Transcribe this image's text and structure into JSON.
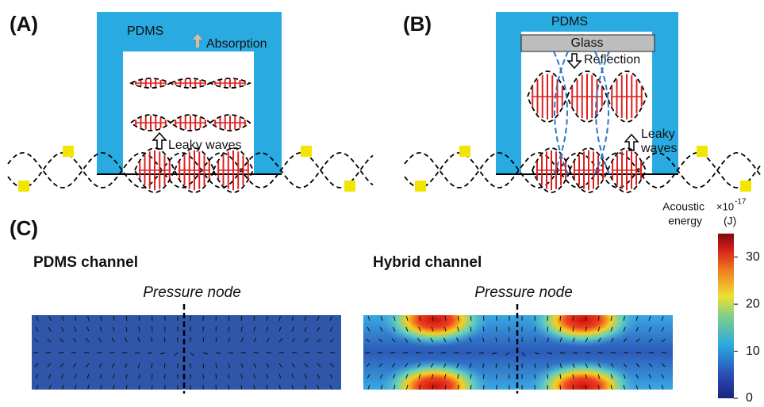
{
  "panels": {
    "a": {
      "label": "(A)",
      "material": "PDMS",
      "annotation": "Absorption",
      "waves": "Leaky waves"
    },
    "b": {
      "label": "(B)",
      "material": "PDMS",
      "glass": "Glass",
      "annotation": "Reflection",
      "waves_line1": "Leaky",
      "waves_line2": "waves"
    },
    "c": {
      "label": "(C)",
      "left_title": "PDMS channel",
      "right_title": "Hybrid channel",
      "left_node": "Pressure node",
      "right_node": "Pressure node"
    }
  },
  "colorbar": {
    "title_line1": "Acoustic",
    "title_line2": "energy",
    "scale_base": "×10",
    "scale_exp": "-17",
    "unit": "(J)",
    "lim": [
      0,
      35
    ],
    "ticks": [
      0,
      10,
      20,
      30
    ]
  }
}
